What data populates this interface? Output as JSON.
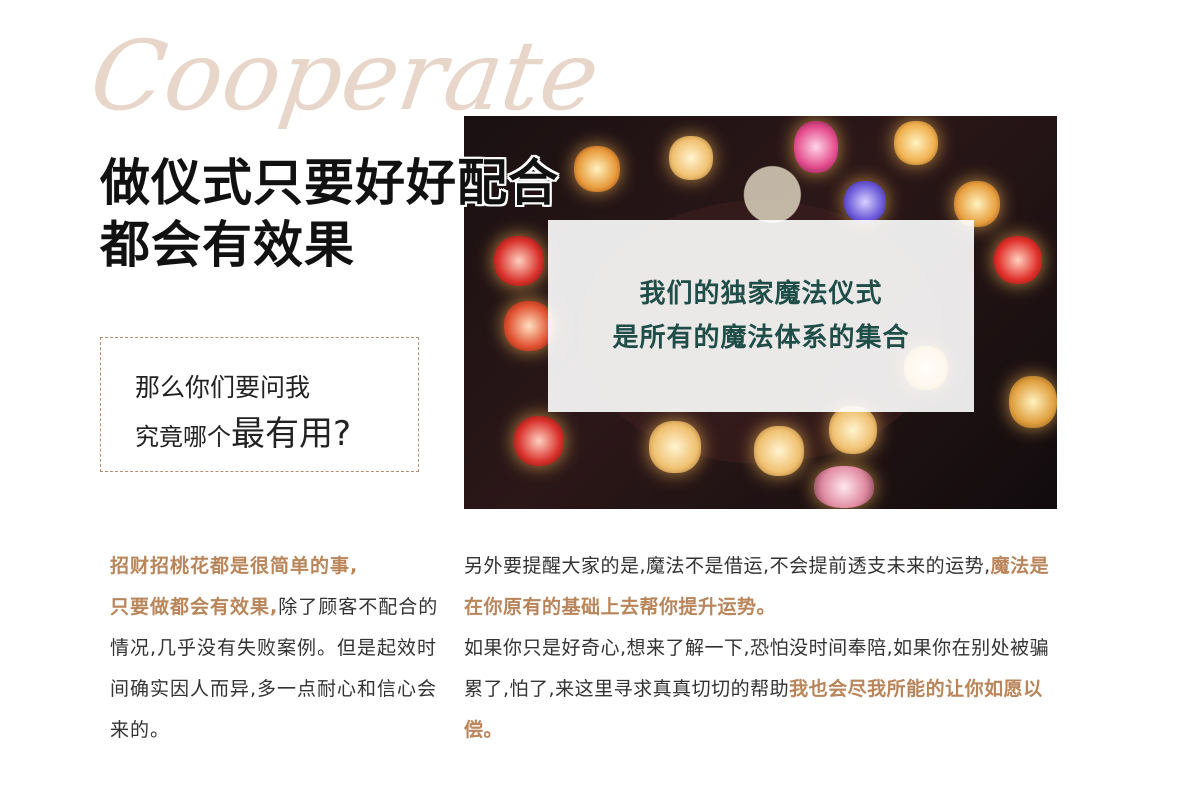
{
  "decor": {
    "script_word": "Cooperate"
  },
  "headline": {
    "line1": "做仪式只要好好配合",
    "line2": "都会有效果"
  },
  "question": {
    "line1": "那么你们要问我",
    "line2_prefix": "究竟哪个",
    "line2_emph": "最有用?"
  },
  "photo": {
    "alt": "candles-and-skull-ritual-photo",
    "overlay_line1": "我们的独家魔法仪式",
    "overlay_line2": "是所有的魔法体系的集合"
  },
  "left_text": {
    "highlight1": "招财招桃花都是很简单的事,",
    "highlight2": "只要做都会有效果,",
    "rest": "除了顾客不配合的情况,几乎没有失败案例。但是起效时间确实因人而异,多一点耐心和信心会来的。"
  },
  "right_text": {
    "p1_start": "另外要提醒大家的是,魔法不是借运,不会提前透支未来的运势,",
    "p1_highlight": "魔法是在你原有的基础上去帮你提升运势。",
    "p2_start": "如果你只是好奇心,想来了解一下,恐怕没时间奉陪,如果你在别处被骗累了,怕了,来这里寻求真真切切的帮助",
    "p2_highlight": "我也会尽我所能的让你如愿以偿。"
  },
  "colors": {
    "accent": "#b9855a",
    "overlay_text": "#1f4e49",
    "script_word": "#e7d6c9",
    "dashed_border": "#b88e70"
  }
}
